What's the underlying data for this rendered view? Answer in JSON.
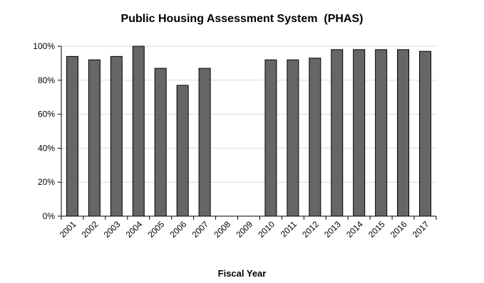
{
  "chart_data": {
    "type": "bar",
    "title": "Public Housing Assessment System  (PHAS)",
    "xlabel": "Fiscal Year",
    "ylabel": "",
    "categories": [
      "2001",
      "2002",
      "2003",
      "2004",
      "2005",
      "2006",
      "2007",
      "2008",
      "2009",
      "2010",
      "2011",
      "2012",
      "2013",
      "2014",
      "2015",
      "2016",
      "2017"
    ],
    "values": [
      94,
      92,
      94,
      100,
      87,
      77,
      87,
      null,
      null,
      92,
      92,
      93,
      98,
      98,
      98,
      98,
      97
    ],
    "ylim": [
      0,
      100
    ],
    "yticks": [
      0,
      20,
      40,
      60,
      80,
      100
    ],
    "ytick_labels": [
      "0%",
      "20%",
      "40%",
      "60%",
      "80%",
      "100%"
    ],
    "grid": true,
    "legend": "none",
    "colors": {
      "bar_fill": "#666666",
      "bar_stroke": "#000000",
      "grid": "#d9d9d9",
      "axis": "#000000"
    }
  }
}
